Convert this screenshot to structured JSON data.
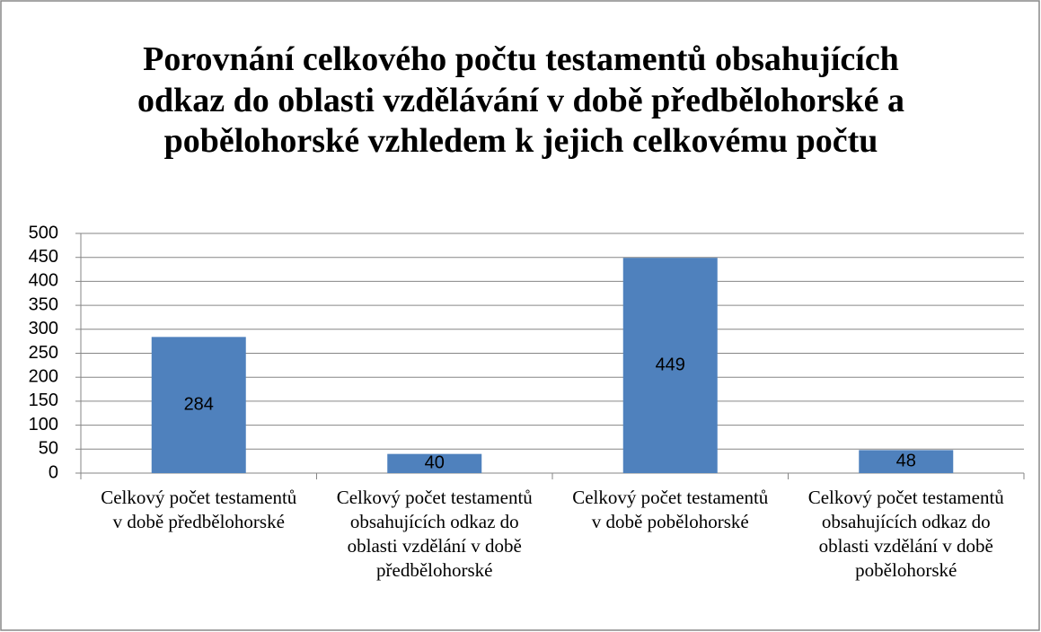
{
  "chart_data": {
    "type": "bar",
    "title": "Porovnání celkového počtu testamentů obsahujících odkaz do oblasti vzdělávání v době předbělohorské a pobělohorské vzhledem k jejich celkovému počtu",
    "categories": [
      "Celkový počet testamentů v době předbělohorské",
      "Celkový počet testamentů obsahujících odkaz do oblasti vzdělání v době předbělohorské",
      "Celkový počet testamentů v době pobělohorské",
      "Celkový počet testamentů obsahujících odkaz do oblasti vzdělání v době pobělohorské"
    ],
    "values": [
      284,
      40,
      449,
      48
    ],
    "color": "#4f81bd",
    "ylim": [
      0,
      500
    ],
    "yticks": [
      0,
      50,
      100,
      150,
      200,
      250,
      300,
      350,
      400,
      450,
      500
    ],
    "grid": true
  }
}
